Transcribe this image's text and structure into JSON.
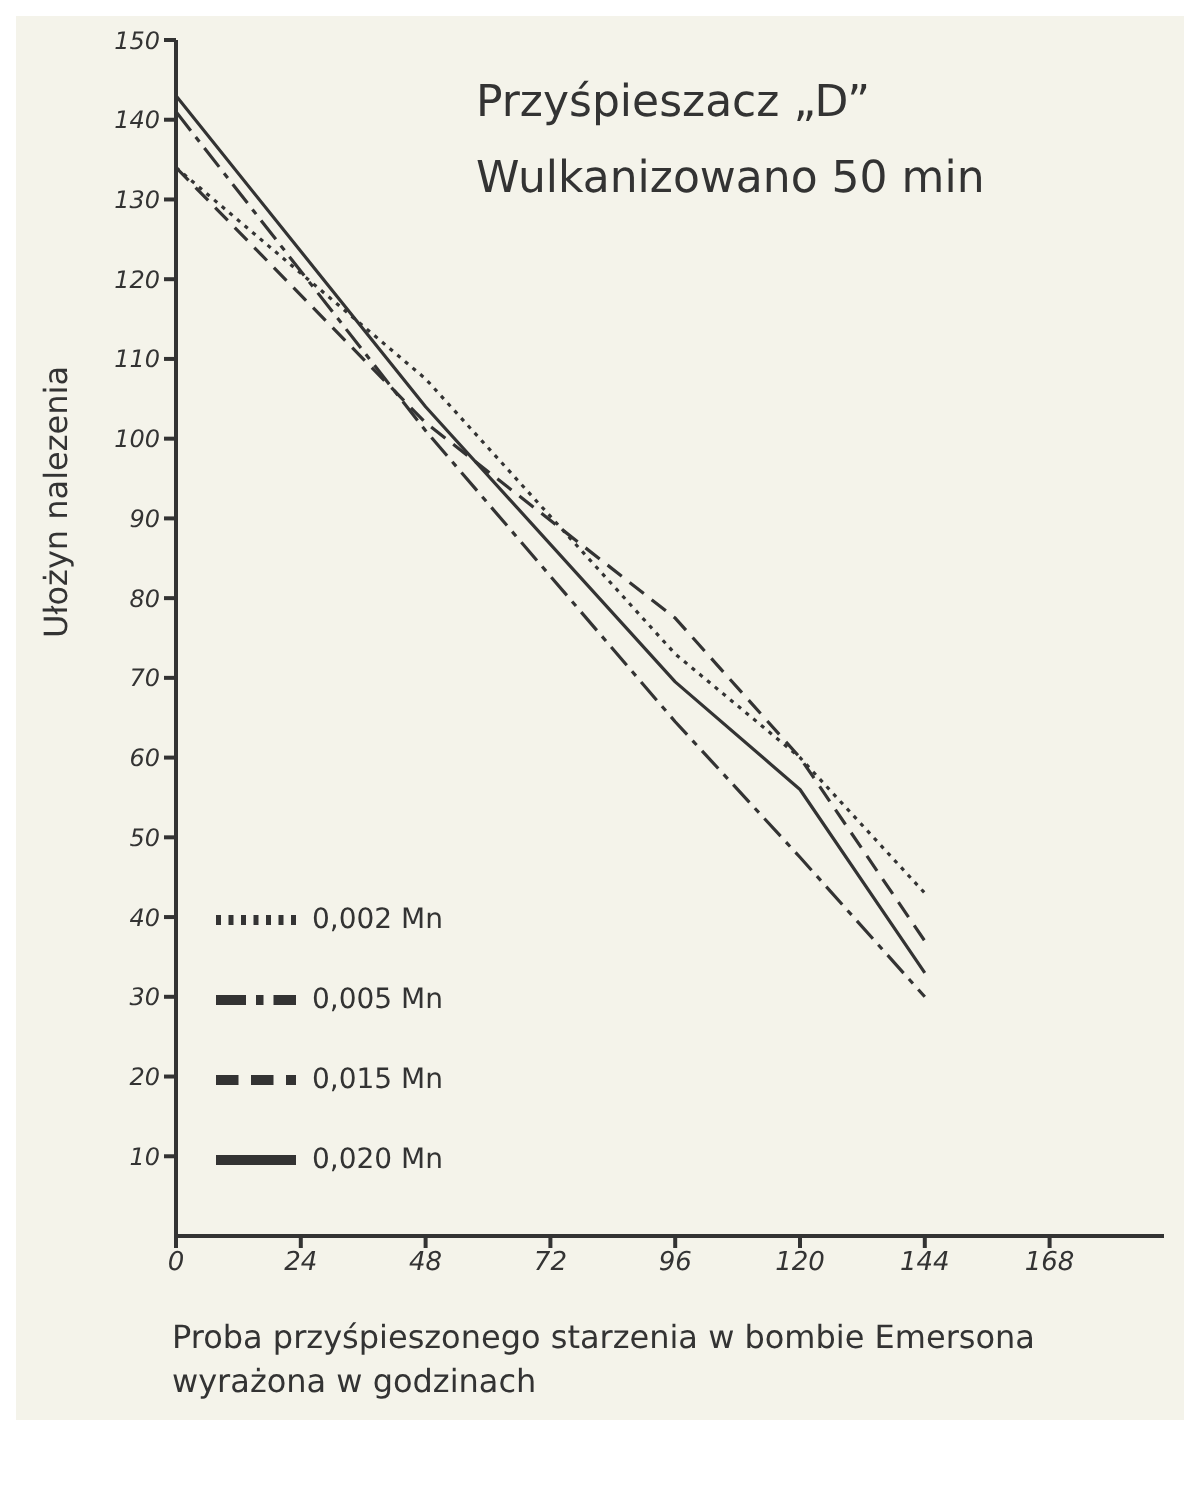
{
  "chart_data": {
    "type": "line",
    "title": "Przyśpieszacz „D”",
    "subtitle": "Wulkanizowano 50 min",
    "xlabel": "Proba przyśpieszonego starzenia w bombie Emersona wyrażona w godzinach",
    "ylabel": "Ułożyn nalezenia",
    "x": [
      0,
      48,
      96,
      120,
      144
    ],
    "series": [
      {
        "name": "0,020 Mn",
        "color": "#333333",
        "line_style": "solid",
        "values": [
          143,
          104,
          69.5,
          56,
          33
        ]
      },
      {
        "name": "0,015 Mn",
        "color": "#333333",
        "line_style": "dashed",
        "values": [
          134,
          102,
          77.5,
          60,
          37
        ]
      },
      {
        "name": "0,005 Mn",
        "color": "#333333",
        "line_style": "dashdot",
        "values": [
          141,
          101,
          64.5,
          47.5,
          30
        ]
      },
      {
        "name": "0,002 Mn",
        "color": "#333333",
        "line_style": "dotted",
        "values": [
          134,
          107.5,
          73,
          60,
          43
        ]
      }
    ],
    "xlim": [
      0,
      190
    ],
    "xticks": [
      0,
      24,
      48,
      72,
      96,
      120,
      144,
      168
    ],
    "ylim": [
      0,
      150
    ],
    "yticks": [
      10,
      20,
      30,
      40,
      50,
      60,
      70,
      80,
      90,
      100,
      110,
      120,
      130,
      140,
      150
    ],
    "grid": false,
    "legend": "bottom left",
    "marker": "none"
  }
}
